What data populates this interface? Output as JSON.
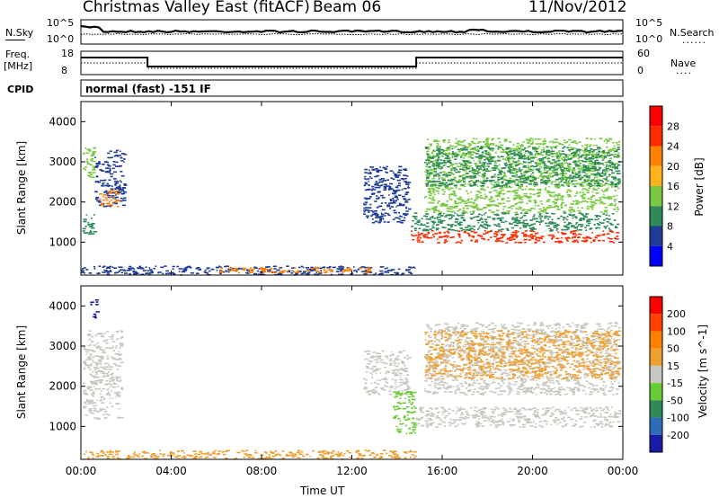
{
  "header": {
    "title": "Christmas Valley East (fitACF)",
    "beam": "Beam 06",
    "date": "11/Nov/2012",
    "cpid_label": "CPID",
    "cpid_value": "normal (fast) -151 IF"
  },
  "noise_panel": {
    "left_label": "N.Sky",
    "right_label": "N.Search",
    "right_marker": "......",
    "left_ticks": [
      "10^5",
      "10^0"
    ],
    "right_ticks": [
      "10^5",
      "10^0"
    ]
  },
  "freq_panel": {
    "left_label": "Freq.",
    "left_units": "[MHz]",
    "right_label": "Nave",
    "right_marker": "....",
    "left_ticks": [
      "18",
      "8"
    ],
    "right_ticks": [
      "60",
      "0"
    ]
  },
  "power_colorbar": {
    "label": "Power [dB]",
    "ticks": [
      "4",
      "8",
      "12",
      "16",
      "20",
      "24",
      "28"
    ],
    "colors": [
      "#0000ff",
      "#1e3c96",
      "#2e8b57",
      "#7ac943",
      "#ffb31a",
      "#ff7f00",
      "#ff2a00",
      "#ff0000"
    ]
  },
  "velocity_colorbar": {
    "label": "Velocity [m s^-1]",
    "ticks": [
      "200",
      "100",
      "50",
      "15",
      "-15",
      "-50",
      "-100",
      "-200"
    ],
    "colors": [
      "#1a1aa8",
      "#2e6bb8",
      "#2e8b57",
      "#66cc33",
      "#c8c8c0",
      "#f0a030",
      "#ff7f00",
      "#ff4000",
      "#ff0000"
    ]
  },
  "chart_data": [
    {
      "type": "heatmap",
      "title": "Power",
      "xlabel": "Time UT",
      "ylabel": "Slant Range [km]",
      "xticks": [
        "00:00",
        "04:00",
        "08:00",
        "12:00",
        "16:00",
        "20:00",
        "00:00"
      ],
      "yticks": [
        "1000",
        "2000",
        "3000",
        "4000"
      ],
      "xlim_hours": [
        0,
        24
      ],
      "ylim_km": [
        180,
        4500
      ],
      "regions": [
        {
          "t0": 0.05,
          "t1": 0.6,
          "r0": 1200,
          "r1": 1700,
          "color": "#2e8b57"
        },
        {
          "t0": 0.05,
          "t1": 0.6,
          "r0": 2600,
          "r1": 3400,
          "color": "#7ac943"
        },
        {
          "t0": 0.6,
          "t1": 1.9,
          "r0": 1900,
          "r1": 3300,
          "color": "#1e3c96"
        },
        {
          "t0": 0.8,
          "t1": 1.6,
          "r0": 1900,
          "r1": 2300,
          "color": "#ff7f00"
        },
        {
          "t0": 0.0,
          "t1": 14.8,
          "r0": 200,
          "r1": 420,
          "color": "#1e3c96"
        },
        {
          "t0": 6.0,
          "t1": 13.0,
          "r0": 250,
          "r1": 380,
          "color": "#ff7f00"
        },
        {
          "t0": 12.5,
          "t1": 14.5,
          "r0": 1500,
          "r1": 2900,
          "color": "#1e3c96"
        },
        {
          "t0": 14.6,
          "t1": 23.8,
          "r0": 1000,
          "r1": 1300,
          "color": "#ff2a00"
        },
        {
          "t0": 14.6,
          "t1": 23.8,
          "r0": 1300,
          "r1": 1750,
          "color": "#2e8b57"
        },
        {
          "t0": 15.2,
          "t1": 23.8,
          "r0": 1750,
          "r1": 3600,
          "color": "#7ac943"
        },
        {
          "t0": 15.2,
          "t1": 23.8,
          "r0": 2400,
          "r1": 3400,
          "color": "#2e8b57"
        }
      ]
    },
    {
      "type": "heatmap",
      "title": "Velocity",
      "xlabel": "Time UT",
      "ylabel": "Slant Range [km]",
      "xticks": [
        "00:00",
        "04:00",
        "08:00",
        "12:00",
        "16:00",
        "20:00",
        "00:00"
      ],
      "yticks": [
        "1000",
        "2000",
        "3000",
        "4000"
      ],
      "xlim_hours": [
        0,
        24
      ],
      "ylim_km": [
        180,
        4500
      ],
      "regions": [
        {
          "t0": 0.05,
          "t1": 1.8,
          "r0": 1200,
          "r1": 3400,
          "color": "#c8c8c0"
        },
        {
          "t0": 0.4,
          "t1": 0.7,
          "r0": 3700,
          "r1": 4200,
          "color": "#1a1aa8"
        },
        {
          "t0": 0.0,
          "t1": 14.8,
          "r0": 200,
          "r1": 420,
          "color": "#f0a030"
        },
        {
          "t0": 12.5,
          "t1": 14.5,
          "r0": 1800,
          "r1": 2900,
          "color": "#c8c8c0"
        },
        {
          "t0": 13.8,
          "t1": 14.8,
          "r0": 800,
          "r1": 1900,
          "color": "#66cc33"
        },
        {
          "t0": 14.8,
          "t1": 23.8,
          "r0": 1000,
          "r1": 1500,
          "color": "#c8c8c0"
        },
        {
          "t0": 15.2,
          "t1": 23.8,
          "r0": 1800,
          "r1": 3600,
          "color": "#c8c8c0"
        },
        {
          "t0": 15.2,
          "t1": 23.8,
          "r0": 2200,
          "r1": 3400,
          "color": "#f0a030"
        }
      ]
    }
  ]
}
